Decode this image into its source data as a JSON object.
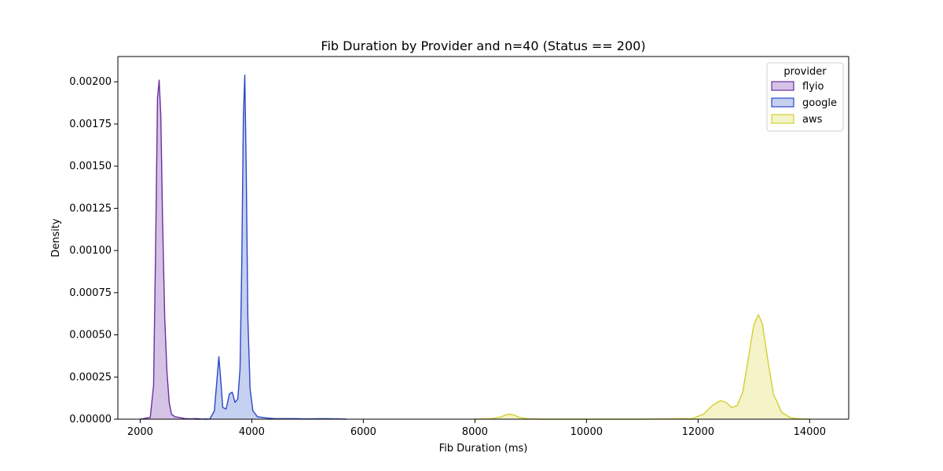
{
  "chart_data": {
    "type": "area",
    "title": "Fib Duration by Provider and n=40 (Status == 200)",
    "xlabel": "Fib Duration (ms)",
    "ylabel": "Density",
    "xlim": [
      1600,
      14700
    ],
    "ylim": [
      0,
      0.00215
    ],
    "x_ticks": [
      2000,
      4000,
      6000,
      8000,
      10000,
      12000,
      14000
    ],
    "y_ticks": [
      0.0,
      0.00025,
      0.0005,
      0.00075,
      0.001,
      0.00125,
      0.0015,
      0.00175,
      0.002
    ],
    "x_tick_labels": [
      "2000",
      "4000",
      "6000",
      "8000",
      "10000",
      "12000",
      "14000"
    ],
    "y_tick_labels": [
      "0.00000",
      "0.00025",
      "0.00050",
      "0.00075",
      "0.00100",
      "0.00125",
      "0.00150",
      "0.00175",
      "0.00200"
    ],
    "grid": false,
    "legend": {
      "title": "provider",
      "placement": "top-right"
    },
    "series": [
      {
        "name": "flyio",
        "color": "#6a2fa0",
        "fill": "#d5c3e6",
        "x": [
          2000,
          2180,
          2240,
          2280,
          2310,
          2340,
          2370,
          2400,
          2440,
          2480,
          2520,
          2560,
          2620,
          2700,
          2800,
          2900,
          3000,
          3100,
          3200
        ],
        "y": [
          0.0,
          1e-05,
          0.0002,
          0.0011,
          0.0019,
          0.00201,
          0.0018,
          0.0012,
          0.0006,
          0.00028,
          0.0001,
          3e-05,
          1.5e-05,
          1e-05,
          4e-06,
          2e-06,
          4e-06,
          1e-06,
          0.0
        ]
      },
      {
        "name": "google",
        "color": "#2b48c8",
        "fill": "#c6d0f0",
        "x": [
          3000,
          3250,
          3330,
          3380,
          3410,
          3440,
          3480,
          3540,
          3600,
          3650,
          3700,
          3750,
          3790,
          3820,
          3850,
          3875,
          3900,
          3930,
          3970,
          4020,
          4100,
          4200,
          4300,
          4400,
          4600,
          4800,
          5000,
          5300,
          5500,
          5700
        ],
        "y": [
          0.0,
          2e-06,
          5e-05,
          0.00025,
          0.00037,
          0.00025,
          7e-05,
          6e-05,
          0.00015,
          0.00016,
          0.0001,
          0.00012,
          0.0003,
          0.0009,
          0.0018,
          0.00204,
          0.0015,
          0.0006,
          0.00018,
          5e-05,
          1.5e-05,
          1e-05,
          6e-06,
          4e-06,
          3e-06,
          3e-06,
          2e-06,
          3e-06,
          2e-06,
          0.0
        ]
      },
      {
        "name": "aws",
        "color": "#d2d030",
        "fill": "#f5f3c8",
        "x": [
          8000,
          8300,
          8450,
          8550,
          8620,
          8700,
          8800,
          8950,
          9200,
          11000,
          11900,
          12100,
          12250,
          12400,
          12500,
          12600,
          12700,
          12800,
          12900,
          13000,
          13080,
          13150,
          13250,
          13350,
          13500,
          13650,
          13800,
          14000
        ],
        "y": [
          0.0,
          3e-06,
          1.2e-05,
          2.5e-05,
          3e-05,
          2.5e-05,
          1e-05,
          3e-06,
          0.0,
          0.0,
          4e-06,
          3e-05,
          8e-05,
          0.00011,
          0.0001,
          7e-05,
          8e-05,
          0.00016,
          0.00036,
          0.00056,
          0.00062,
          0.00057,
          0.00035,
          0.00015,
          4e-05,
          1e-05,
          2e-06,
          0.0
        ]
      }
    ]
  }
}
